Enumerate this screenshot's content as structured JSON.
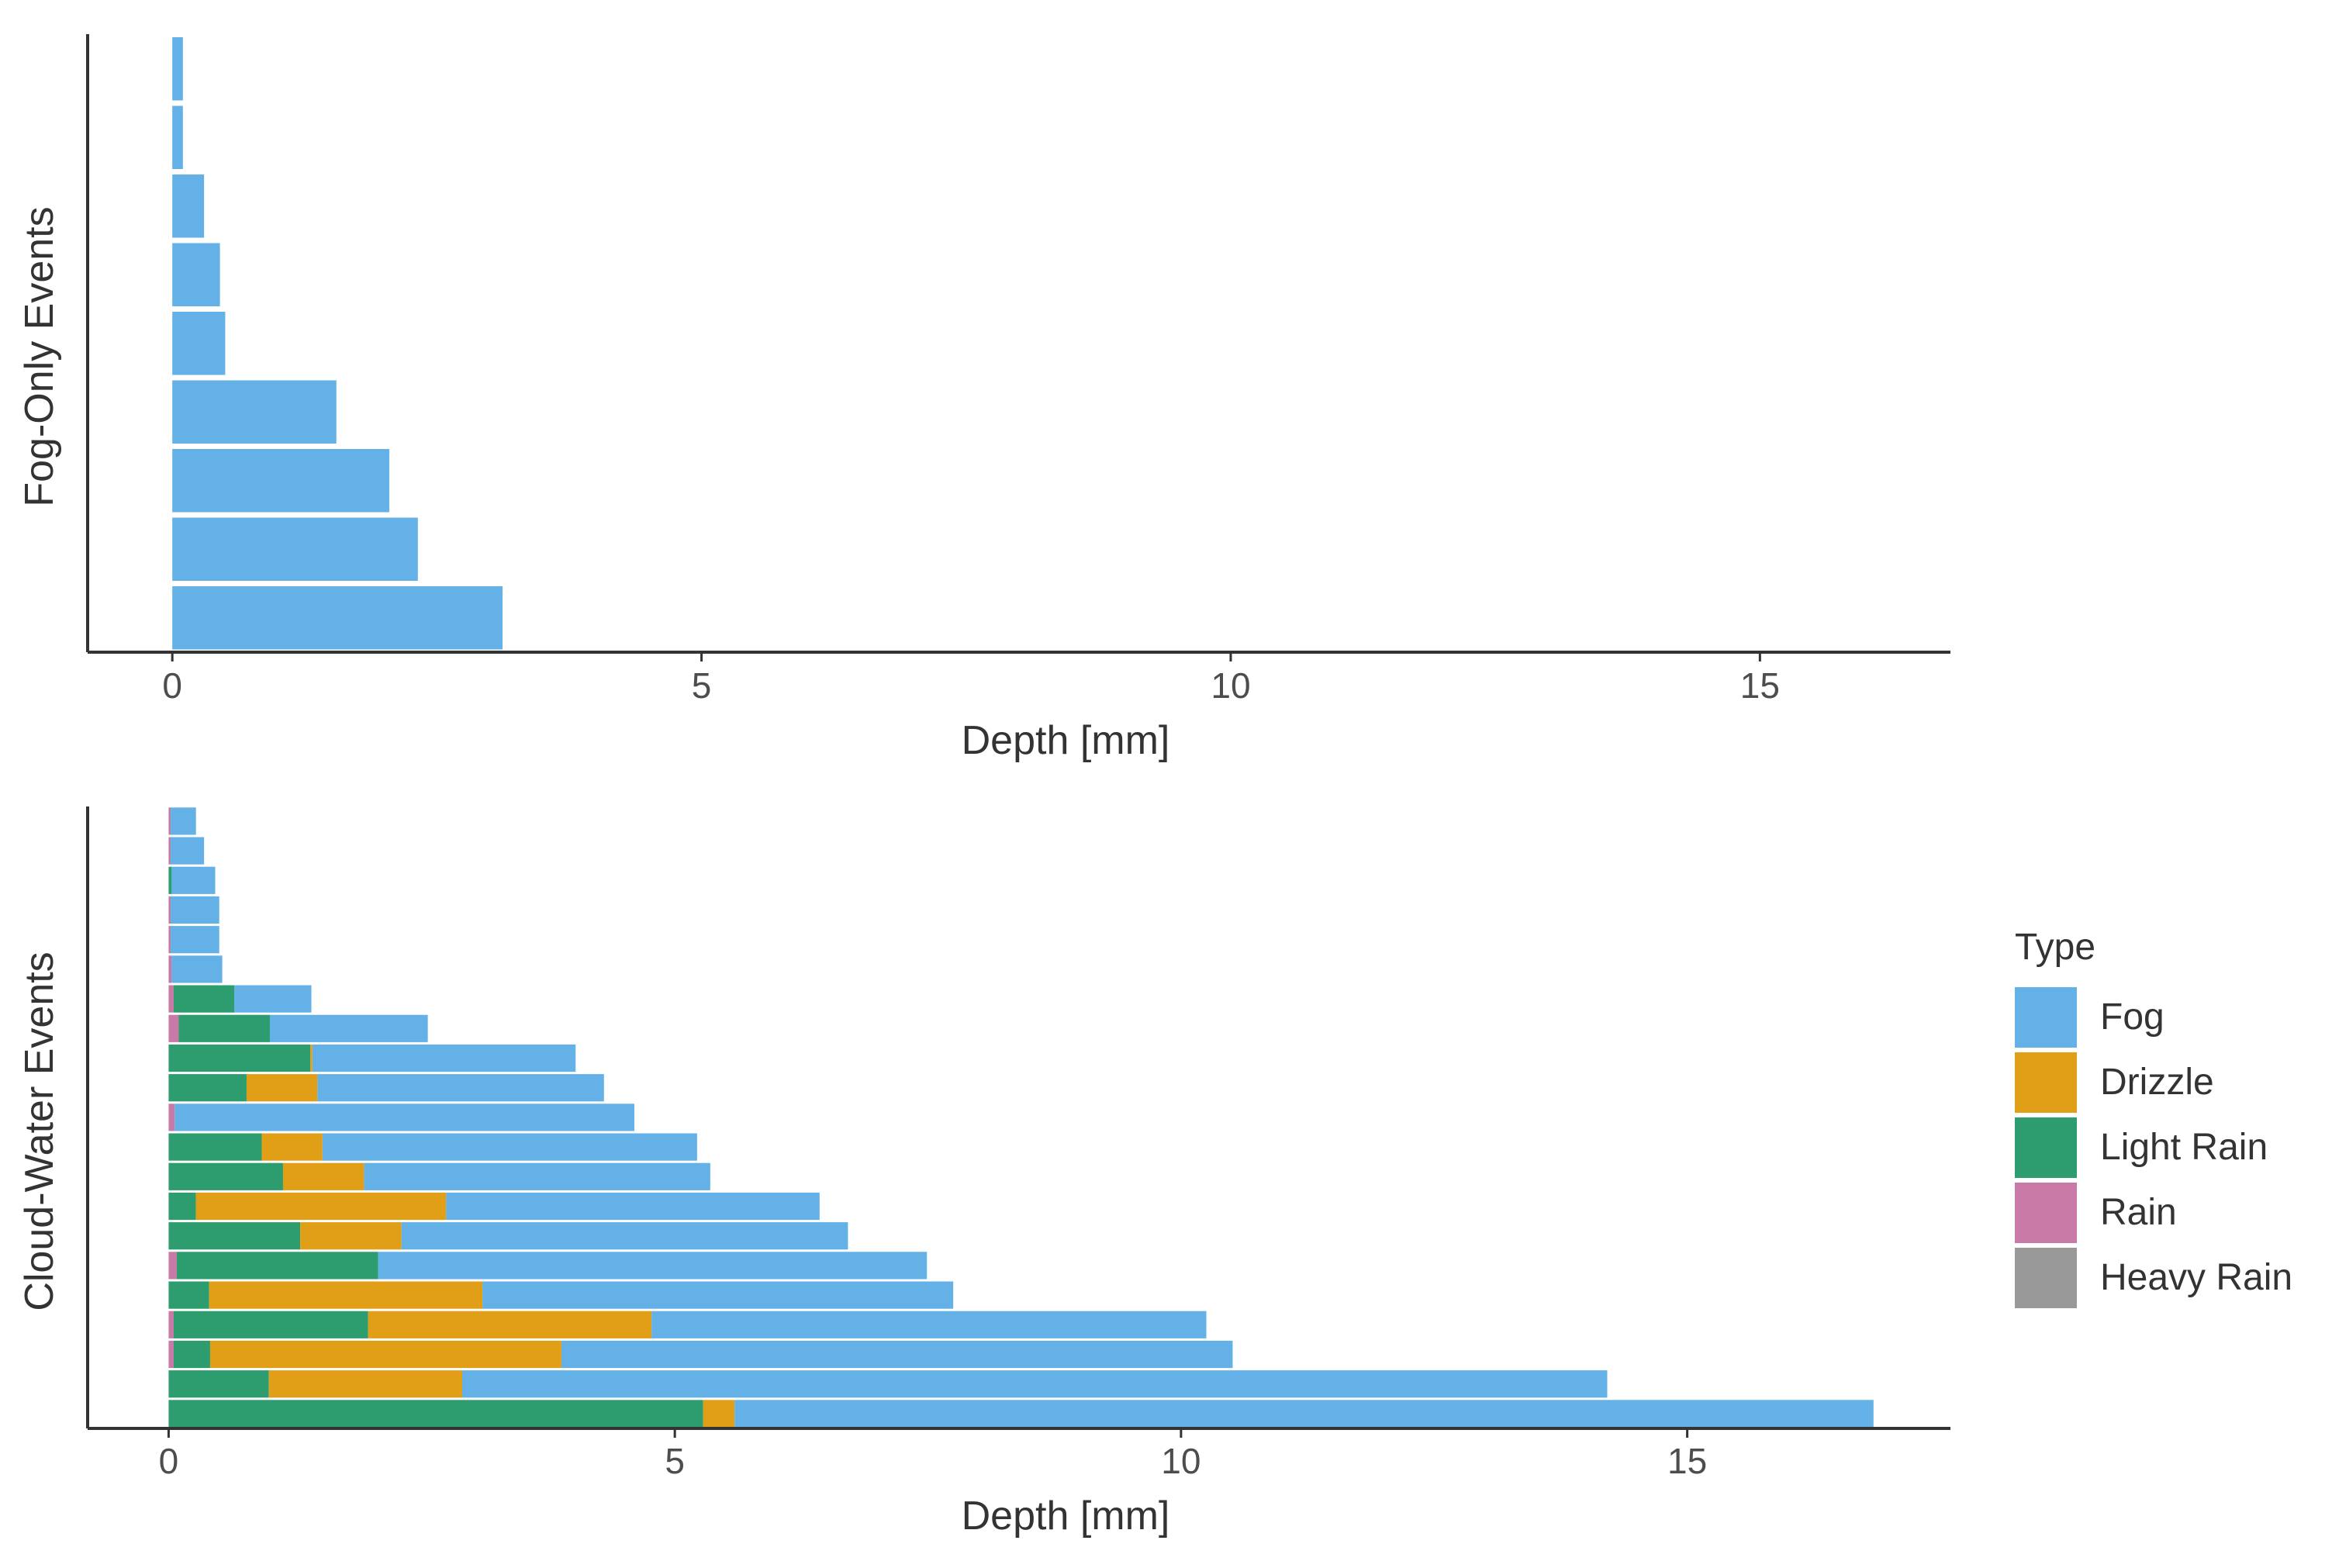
{
  "colors": {
    "Fog": "#63b1e6",
    "Drizzle": "#e09f17",
    "Light Rain": "#2d9c6e",
    "Rain": "#c879a6",
    "Heavy Rain": "#999999",
    "axis": "#333333",
    "text": "#333333"
  },
  "legend": {
    "title": "Type",
    "position": "right",
    "entries": [
      "Fog",
      "Drizzle",
      "Light Rain",
      "Rain",
      "Heavy Rain"
    ]
  },
  "chart_data": [
    {
      "type": "bar",
      "orientation": "horizontal",
      "stacked": true,
      "title": "",
      "xlabel": "Depth [mm]",
      "ylabel": "Fog-Only Events",
      "xlim": [
        -0.8,
        16.8
      ],
      "xticks": [
        0,
        5,
        10,
        15
      ],
      "grid": false,
      "series_order": [
        "Rain",
        "Light Rain",
        "Drizzle",
        "Fog"
      ],
      "bars": [
        {
          "Rain": 0,
          "Light Rain": 0,
          "Drizzle": 0,
          "Fog": 0.1
        },
        {
          "Rain": 0,
          "Light Rain": 0,
          "Drizzle": 0,
          "Fog": 0.1
        },
        {
          "Rain": 0,
          "Light Rain": 0,
          "Drizzle": 0,
          "Fog": 0.3
        },
        {
          "Rain": 0,
          "Light Rain": 0,
          "Drizzle": 0,
          "Fog": 0.45
        },
        {
          "Rain": 0,
          "Light Rain": 0,
          "Drizzle": 0,
          "Fog": 0.5
        },
        {
          "Rain": 0,
          "Light Rain": 0,
          "Drizzle": 0,
          "Fog": 1.55
        },
        {
          "Rain": 0,
          "Light Rain": 0,
          "Drizzle": 0,
          "Fog": 2.05
        },
        {
          "Rain": 0,
          "Light Rain": 0,
          "Drizzle": 0,
          "Fog": 2.32
        },
        {
          "Rain": 0,
          "Light Rain": 0,
          "Drizzle": 0,
          "Fog": 3.12
        }
      ]
    },
    {
      "type": "bar",
      "orientation": "horizontal",
      "stacked": true,
      "title": "",
      "xlabel": "Depth [mm]",
      "ylabel": "Cloud-Water Events",
      "xlim": [
        -0.8,
        17.6
      ],
      "xticks": [
        0,
        5,
        10,
        15
      ],
      "grid": false,
      "series_order": [
        "Rain",
        "Light Rain",
        "Drizzle",
        "Fog"
      ],
      "bars": [
        {
          "Rain": 0.02,
          "Light Rain": 0,
          "Drizzle": 0,
          "Fog": 0.25
        },
        {
          "Rain": 0.02,
          "Light Rain": 0,
          "Drizzle": 0,
          "Fog": 0.33
        },
        {
          "Rain": 0,
          "Light Rain": 0.03,
          "Drizzle": 0,
          "Fog": 0.43
        },
        {
          "Rain": 0.02,
          "Light Rain": 0,
          "Drizzle": 0,
          "Fog": 0.48
        },
        {
          "Rain": 0.02,
          "Light Rain": 0,
          "Drizzle": 0,
          "Fog": 0.48
        },
        {
          "Rain": 0.03,
          "Light Rain": 0,
          "Drizzle": 0,
          "Fog": 0.5
        },
        {
          "Rain": 0.05,
          "Light Rain": 0.6,
          "Drizzle": 0,
          "Fog": 0.76
        },
        {
          "Rain": 0.1,
          "Light Rain": 0.9,
          "Drizzle": 0,
          "Fog": 1.56
        },
        {
          "Rain": 0,
          "Light Rain": 1.4,
          "Drizzle": 0.02,
          "Fog": 2.6
        },
        {
          "Rain": 0,
          "Light Rain": 0.77,
          "Drizzle": 0.7,
          "Fog": 2.83
        },
        {
          "Rain": 0.06,
          "Light Rain": 0,
          "Drizzle": 0,
          "Fog": 4.54
        },
        {
          "Rain": 0,
          "Light Rain": 0.92,
          "Drizzle": 0.6,
          "Fog": 3.7
        },
        {
          "Rain": 0,
          "Light Rain": 1.13,
          "Drizzle": 0.8,
          "Fog": 3.42
        },
        {
          "Rain": 0,
          "Light Rain": 0.27,
          "Drizzle": 2.47,
          "Fog": 3.69
        },
        {
          "Rain": 0,
          "Light Rain": 1.3,
          "Drizzle": 1.0,
          "Fog": 4.41
        },
        {
          "Rain": 0.08,
          "Light Rain": 1.99,
          "Drizzle": 0,
          "Fog": 5.42
        },
        {
          "Rain": 0,
          "Light Rain": 0.4,
          "Drizzle": 2.7,
          "Fog": 4.65
        },
        {
          "Rain": 0.05,
          "Light Rain": 1.92,
          "Drizzle": 2.8,
          "Fog": 5.48
        },
        {
          "Rain": 0.05,
          "Light Rain": 0.36,
          "Drizzle": 3.47,
          "Fog": 6.63
        },
        {
          "Rain": 0,
          "Light Rain": 0.99,
          "Drizzle": 1.91,
          "Fog": 11.31
        },
        {
          "Rain": 0,
          "Light Rain": 5.28,
          "Drizzle": 0.31,
          "Fog": 11.25
        }
      ]
    }
  ]
}
